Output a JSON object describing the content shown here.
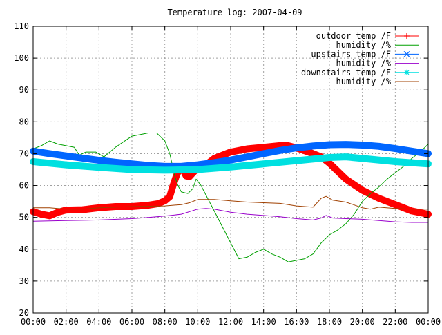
{
  "chart_data": {
    "type": "line",
    "title": "Temperature log: 2007-04-09",
    "xlabel": "",
    "ylabel": "",
    "xlim": [
      0,
      24
    ],
    "ylim": [
      20,
      110
    ],
    "grid": true,
    "legend_position": "top-right",
    "x_ticks": [
      "00:00",
      "02:00",
      "04:00",
      "06:00",
      "08:00",
      "10:00",
      "12:00",
      "14:00",
      "16:00",
      "18:00",
      "20:00",
      "22:00",
      "00:00"
    ],
    "y_ticks": [
      "20",
      "30",
      "40",
      "50",
      "60",
      "70",
      "80",
      "90",
      "100",
      "110"
    ],
    "series": [
      {
        "name": "outdoor temp /F",
        "color": "#ff0000",
        "marker": "plus",
        "points": [
          [
            0,
            51.8
          ],
          [
            0.5,
            51.0
          ],
          [
            1.0,
            50.5
          ],
          [
            1.5,
            51.6
          ],
          [
            2.0,
            52.3
          ],
          [
            3.0,
            52.4
          ],
          [
            4.0,
            53.0
          ],
          [
            5.0,
            53.4
          ],
          [
            6.0,
            53.4
          ],
          [
            7.0,
            53.8
          ],
          [
            7.6,
            54.3
          ],
          [
            8.0,
            55.2
          ],
          [
            8.3,
            56.5
          ],
          [
            8.5,
            60.0
          ],
          [
            8.7,
            63.0
          ],
          [
            8.9,
            65.5
          ],
          [
            9.1,
            65.0
          ],
          [
            9.3,
            63.0
          ],
          [
            9.5,
            62.8
          ],
          [
            9.8,
            64.5
          ],
          [
            10.0,
            66.0
          ],
          [
            10.5,
            66.5
          ],
          [
            11.0,
            68.5
          ],
          [
            11.5,
            69.5
          ],
          [
            12.0,
            70.5
          ],
          [
            13.0,
            71.5
          ],
          [
            14.0,
            72.0
          ],
          [
            15.0,
            72.5
          ],
          [
            15.5,
            72.5
          ],
          [
            16.0,
            71.8
          ],
          [
            17.0,
            70.0
          ],
          [
            17.5,
            69.0
          ],
          [
            18.0,
            67.0
          ],
          [
            19.0,
            62.0
          ],
          [
            20.0,
            58.5
          ],
          [
            21.0,
            56.0
          ],
          [
            22.0,
            54.0
          ],
          [
            23.0,
            52.0
          ],
          [
            24.0,
            51.0
          ]
        ]
      },
      {
        "name": "humidity /%",
        "color": "#00a000",
        "marker": "none",
        "points": [
          [
            0,
            71.5
          ],
          [
            0.5,
            72.5
          ],
          [
            1.0,
            74.0
          ],
          [
            1.5,
            73.0
          ],
          [
            2.0,
            72.5
          ],
          [
            2.5,
            72.0
          ],
          [
            2.8,
            69.5
          ],
          [
            3.2,
            70.5
          ],
          [
            3.8,
            70.5
          ],
          [
            4.3,
            69.0
          ],
          [
            5.0,
            72.0
          ],
          [
            6.0,
            75.5
          ],
          [
            7.0,
            76.5
          ],
          [
            7.5,
            76.5
          ],
          [
            8.0,
            74.0
          ],
          [
            8.3,
            70.0
          ],
          [
            8.6,
            63.0
          ],
          [
            8.8,
            60.0
          ],
          [
            9.0,
            58.0
          ],
          [
            9.4,
            57.5
          ],
          [
            9.7,
            59.0
          ],
          [
            9.9,
            62.0
          ],
          [
            10.2,
            60.0
          ],
          [
            10.6,
            56.0
          ],
          [
            11.0,
            52.0
          ],
          [
            11.5,
            47.0
          ],
          [
            12.0,
            42.0
          ],
          [
            12.5,
            37.0
          ],
          [
            13.0,
            37.5
          ],
          [
            13.5,
            39.0
          ],
          [
            14.0,
            40.0
          ],
          [
            14.5,
            38.5
          ],
          [
            15.0,
            37.5
          ],
          [
            15.5,
            36.0
          ],
          [
            16.0,
            36.5
          ],
          [
            16.5,
            37.0
          ],
          [
            17.0,
            38.5
          ],
          [
            17.5,
            42.0
          ],
          [
            18.0,
            44.5
          ],
          [
            18.5,
            46.0
          ],
          [
            19.0,
            48.0
          ],
          [
            19.5,
            51.0
          ],
          [
            20.0,
            55.0
          ],
          [
            20.5,
            57.5
          ],
          [
            21.0,
            59.5
          ],
          [
            21.5,
            62.0
          ],
          [
            22.0,
            64.0
          ],
          [
            22.5,
            66.0
          ],
          [
            23.0,
            68.5
          ],
          [
            23.5,
            70.5
          ],
          [
            24.0,
            73.0
          ]
        ]
      },
      {
        "name": "upstairs temp /F",
        "color": "#0066ff",
        "marker": "cross",
        "points": [
          [
            0,
            70.8
          ],
          [
            1,
            70.0
          ],
          [
            2,
            69.3
          ],
          [
            3,
            68.6
          ],
          [
            4,
            67.9
          ],
          [
            5,
            67.3
          ],
          [
            6,
            66.8
          ],
          [
            7,
            66.3
          ],
          [
            8,
            66.0
          ],
          [
            9,
            66.0
          ],
          [
            10,
            66.5
          ],
          [
            11,
            67.2
          ],
          [
            12,
            68.0
          ],
          [
            13,
            69.0
          ],
          [
            14,
            70.0
          ],
          [
            15,
            71.0
          ],
          [
            16,
            71.8
          ],
          [
            17,
            72.4
          ],
          [
            18,
            72.8
          ],
          [
            19,
            72.9
          ],
          [
            20,
            72.7
          ],
          [
            21,
            72.3
          ],
          [
            22,
            71.6
          ],
          [
            23,
            70.8
          ],
          [
            24,
            70.0
          ]
        ]
      },
      {
        "name": "humidity /%",
        "color": "#9900cc",
        "marker": "none",
        "points": [
          [
            0,
            48.8
          ],
          [
            2,
            49.0
          ],
          [
            4,
            49.2
          ],
          [
            6,
            49.6
          ],
          [
            7,
            50.0
          ],
          [
            8,
            50.4
          ],
          [
            9,
            51.0
          ],
          [
            10,
            52.6
          ],
          [
            10.5,
            52.8
          ],
          [
            11,
            52.6
          ],
          [
            12,
            51.6
          ],
          [
            13,
            51.0
          ],
          [
            14,
            50.6
          ],
          [
            15,
            50.2
          ],
          [
            16,
            49.6
          ],
          [
            17,
            49.2
          ],
          [
            17.5,
            49.8
          ],
          [
            17.8,
            50.6
          ],
          [
            18.2,
            49.8
          ],
          [
            19,
            49.6
          ],
          [
            20,
            49.4
          ],
          [
            21,
            49.0
          ],
          [
            22,
            48.6
          ],
          [
            23,
            48.4
          ],
          [
            24,
            48.4
          ]
        ]
      },
      {
        "name": "downstairs temp /F",
        "color": "#00e0e0",
        "marker": "star",
        "points": [
          [
            0,
            67.5
          ],
          [
            2,
            66.5
          ],
          [
            4,
            65.7
          ],
          [
            6,
            65.0
          ],
          [
            8,
            64.8
          ],
          [
            10,
            65.0
          ],
          [
            12,
            65.8
          ],
          [
            14,
            66.8
          ],
          [
            16,
            67.8
          ],
          [
            18,
            68.8
          ],
          [
            19,
            69.0
          ],
          [
            20,
            68.5
          ],
          [
            22,
            67.5
          ],
          [
            24,
            66.8
          ]
        ]
      },
      {
        "name": "humidity /%",
        "color": "#a04000",
        "marker": "none",
        "points": [
          [
            0,
            53.0
          ],
          [
            1,
            53.0
          ],
          [
            2,
            52.6
          ],
          [
            3,
            52.6
          ],
          [
            4,
            53.0
          ],
          [
            6,
            53.4
          ],
          [
            8,
            53.6
          ],
          [
            9,
            54.0
          ],
          [
            9.5,
            54.6
          ],
          [
            10,
            55.6
          ],
          [
            11,
            55.6
          ],
          [
            12,
            55.2
          ],
          [
            13,
            54.8
          ],
          [
            14,
            54.6
          ],
          [
            15,
            54.4
          ],
          [
            16,
            53.6
          ],
          [
            17,
            53.2
          ],
          [
            17.5,
            56.0
          ],
          [
            17.8,
            56.6
          ],
          [
            18.2,
            55.4
          ],
          [
            19,
            54.8
          ],
          [
            20,
            53.0
          ],
          [
            20.5,
            52.6
          ],
          [
            21,
            53.2
          ],
          [
            22,
            52.8
          ],
          [
            23,
            52.6
          ],
          [
            24,
            52.6
          ]
        ]
      }
    ]
  }
}
